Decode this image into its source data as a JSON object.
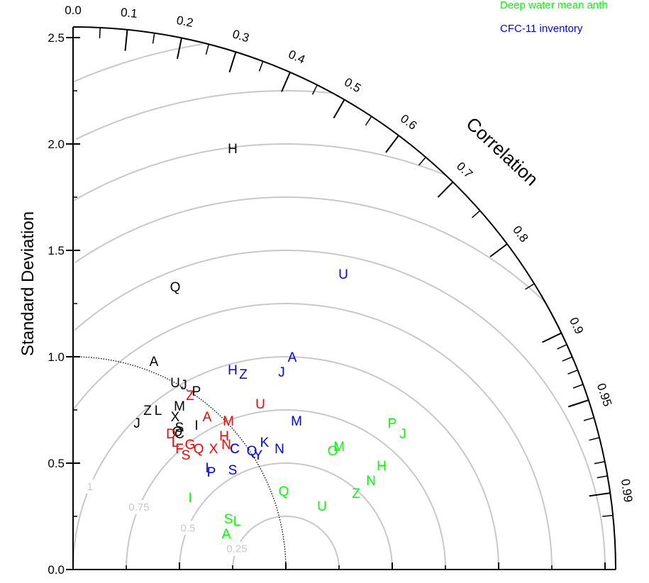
{
  "chart_data": {
    "type": "scatter",
    "subtype": "taylor-diagram",
    "ylabel": "Standard Deviation",
    "arc_label": "Correlation",
    "std_ticks": [
      "0.0",
      "0.5",
      "1.0",
      "1.5",
      "2.0",
      "2.5"
    ],
    "std_range": [
      0,
      2.55
    ],
    "reference_std": 1.0,
    "correlation_ticks": [
      "0.0",
      "0.1",
      "0.2",
      "0.3",
      "0.4",
      "0.5",
      "0.6",
      "0.7",
      "0.8",
      "0.9",
      "0.95",
      "0.99"
    ],
    "correlation_ticks_numeric": [
      0.0,
      0.1,
      0.2,
      0.3,
      0.4,
      0.5,
      0.6,
      0.7,
      0.8,
      0.9,
      0.95,
      0.99
    ],
    "rms_contours": [
      "0.25",
      "0.5",
      "0.75",
      "1",
      "1.25",
      "1.5",
      "1.75",
      "2",
      "2.25",
      "2.5"
    ],
    "rms_contours_numeric": [
      0.25,
      0.5,
      0.75,
      1.0,
      1.25,
      1.5,
      1.75,
      2.0,
      2.25,
      2.5
    ],
    "legend_position": "top-right",
    "series": [
      {
        "name": "",
        "color": "#000000",
        "points": [
          {
            "label": "H",
            "x": 0.75,
            "y": 1.98
          },
          {
            "label": "Q",
            "x": 0.48,
            "y": 1.33
          },
          {
            "label": "A",
            "x": 0.38,
            "y": 0.98
          },
          {
            "label": "U",
            "x": 0.48,
            "y": 0.88
          },
          {
            "label": "J",
            "x": 0.52,
            "y": 0.87
          },
          {
            "label": "P",
            "x": 0.58,
            "y": 0.84
          },
          {
            "label": "Z",
            "x": 0.35,
            "y": 0.75
          },
          {
            "label": "L",
            "x": 0.4,
            "y": 0.75
          },
          {
            "label": "M",
            "x": 0.5,
            "y": 0.77
          },
          {
            "label": "J",
            "x": 0.3,
            "y": 0.69
          },
          {
            "label": "X",
            "x": 0.48,
            "y": 0.72
          },
          {
            "label": "I",
            "x": 0.58,
            "y": 0.68
          },
          {
            "label": "S",
            "x": 0.5,
            "y": 0.67
          },
          {
            "label": "O",
            "x": 0.49,
            "y": 0.65
          },
          {
            "label": "C",
            "x": 0.5,
            "y": 0.64
          }
        ]
      },
      {
        "name": "",
        "color": "#ff0000",
        "points": [
          {
            "label": "Z",
            "x": 0.55,
            "y": 0.82
          },
          {
            "label": "U",
            "x": 0.88,
            "y": 0.78
          },
          {
            "label": "A",
            "x": 0.63,
            "y": 0.72
          },
          {
            "label": "M",
            "x": 0.73,
            "y": 0.7
          },
          {
            "label": "H",
            "x": 0.71,
            "y": 0.63
          },
          {
            "label": "D",
            "x": 0.46,
            "y": 0.64
          },
          {
            "label": "L",
            "x": 0.48,
            "y": 0.6
          },
          {
            "label": "G",
            "x": 0.55,
            "y": 0.59
          },
          {
            "label": "Q",
            "x": 0.59,
            "y": 0.57
          },
          {
            "label": "X",
            "x": 0.66,
            "y": 0.57
          },
          {
            "label": "N",
            "x": 0.72,
            "y": 0.59
          },
          {
            "label": "C",
            "x": 0.76,
            "y": 0.57
          },
          {
            "label": "F",
            "x": 0.5,
            "y": 0.57
          },
          {
            "label": "S",
            "x": 0.53,
            "y": 0.54
          }
        ]
      },
      {
        "name": "Deep water mean anth",
        "color": "#00ff00",
        "points": [
          {
            "label": "P",
            "x": 1.5,
            "y": 0.69
          },
          {
            "label": "J",
            "x": 1.55,
            "y": 0.64
          },
          {
            "label": "M",
            "x": 1.25,
            "y": 0.58
          },
          {
            "label": "O",
            "x": 1.22,
            "y": 0.56
          },
          {
            "label": "H",
            "x": 1.45,
            "y": 0.49
          },
          {
            "label": "N",
            "x": 1.4,
            "y": 0.42
          },
          {
            "label": "Z",
            "x": 1.33,
            "y": 0.36
          },
          {
            "label": "Q",
            "x": 0.99,
            "y": 0.37
          },
          {
            "label": "I",
            "x": 0.55,
            "y": 0.34
          },
          {
            "label": "U",
            "x": 1.17,
            "y": 0.3
          },
          {
            "label": "S",
            "x": 0.73,
            "y": 0.24
          },
          {
            "label": "L",
            "x": 0.77,
            "y": 0.23
          },
          {
            "label": "A",
            "x": 0.72,
            "y": 0.17
          }
        ]
      },
      {
        "name": "CFC-11 inventory",
        "color": "#0000ff",
        "points": [
          {
            "label": "U",
            "x": 1.27,
            "y": 1.39
          },
          {
            "label": "A",
            "x": 1.03,
            "y": 1.0
          },
          {
            "label": "H",
            "x": 0.75,
            "y": 0.94
          },
          {
            "label": "Z",
            "x": 0.8,
            "y": 0.92
          },
          {
            "label": "J",
            "x": 0.98,
            "y": 0.93
          },
          {
            "label": "M",
            "x": 1.05,
            "y": 0.7
          },
          {
            "label": "K",
            "x": 0.9,
            "y": 0.6
          },
          {
            "label": "N",
            "x": 0.97,
            "y": 0.57
          },
          {
            "label": "Q",
            "x": 0.84,
            "y": 0.56
          },
          {
            "label": "Y",
            "x": 0.87,
            "y": 0.54
          },
          {
            "label": "C",
            "x": 0.76,
            "y": 0.57
          },
          {
            "label": "S",
            "x": 0.75,
            "y": 0.47
          },
          {
            "label": "I",
            "x": 0.63,
            "y": 0.48
          },
          {
            "label": "P",
            "x": 0.65,
            "y": 0.46
          }
        ]
      }
    ]
  }
}
